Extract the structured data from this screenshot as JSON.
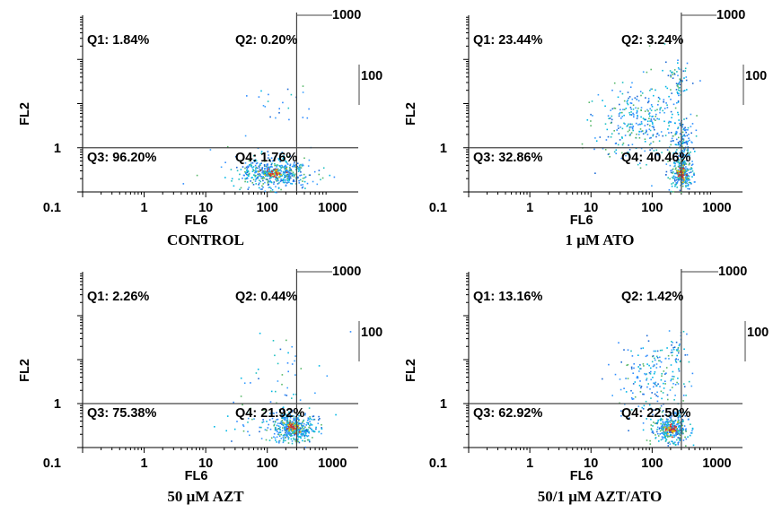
{
  "chart_data": [
    {
      "type": "scatter",
      "caption": "CONTROL",
      "xlabel": "FL6",
      "ylabel": "FL2",
      "xscale": "log",
      "yscale": "log",
      "xlim": [
        0.1,
        3000
      ],
      "ylim": [
        0.1,
        1000
      ],
      "x_ticks": [
        "1",
        "10",
        "100",
        "1000"
      ],
      "y_ticks": [
        "0.1",
        "1",
        "100",
        "1000"
      ],
      "gates": {
        "x": 300,
        "y": 1
      },
      "quadrants": [
        {
          "label": "Q1: 1.84%",
          "value": 1.84
        },
        {
          "label": "Q2: 0.20%",
          "value": 0.2
        },
        {
          "label": "Q3: 96.20%",
          "value": 96.2
        },
        {
          "label": "Q4: 1.76%",
          "value": 1.76
        }
      ],
      "populations": [
        {
          "center": [
            130,
            0.28
          ],
          "spread": [
            0.28,
            0.16
          ],
          "count": 480
        },
        {
          "center": [
            160,
            10
          ],
          "spread": [
            0.25,
            0.3
          ],
          "count": 22
        },
        {
          "center": [
            60,
            0.35
          ],
          "spread": [
            0.45,
            0.3
          ],
          "count": 40
        }
      ]
    },
    {
      "type": "scatter",
      "caption": "1 μM ATO",
      "xlabel": "FL6",
      "ylabel": "FL2",
      "xscale": "log",
      "yscale": "log",
      "xlim": [
        0.1,
        3000
      ],
      "ylim": [
        0.1,
        1000
      ],
      "x_ticks": [
        "1",
        "10",
        "100",
        "1000"
      ],
      "y_ticks": [
        "0.1",
        "1",
        "100",
        "1000"
      ],
      "gates": {
        "x": 300,
        "y": 1
      },
      "quadrants": [
        {
          "label": "Q1: 23.44%",
          "value": 23.44
        },
        {
          "label": "Q2: 3.24%",
          "value": 3.24
        },
        {
          "label": "Q3: 32.86%",
          "value": 32.86
        },
        {
          "label": "Q4: 40.46%",
          "value": 40.46
        }
      ],
      "populations": [
        {
          "center": [
            300,
            0.28
          ],
          "spread": [
            0.1,
            0.2
          ],
          "count": 260
        },
        {
          "center": [
            300,
            1.5
          ],
          "spread": [
            0.1,
            0.3
          ],
          "count": 120
        },
        {
          "center": [
            60,
            4
          ],
          "spread": [
            0.35,
            0.45
          ],
          "count": 320
        },
        {
          "center": [
            250,
            30
          ],
          "spread": [
            0.1,
            0.25
          ],
          "count": 60
        }
      ]
    },
    {
      "type": "scatter",
      "caption": "50 μM AZT",
      "xlabel": "FL6",
      "ylabel": "FL2",
      "xscale": "log",
      "yscale": "log",
      "xlim": [
        0.1,
        3000
      ],
      "ylim": [
        0.1,
        1000
      ],
      "x_ticks": [
        "1",
        "10",
        "100",
        "1000"
      ],
      "y_ticks": [
        "0.1",
        "1",
        "100",
        "1000"
      ],
      "gates": {
        "x": 300,
        "y": 1
      },
      "quadrants": [
        {
          "label": "Q1: 2.26%",
          "value": 2.26
        },
        {
          "label": "Q2: 0.44%",
          "value": 0.44
        },
        {
          "label": "Q3: 75.38%",
          "value": 75.38
        },
        {
          "label": "Q4: 21.92%",
          "value": 21.92
        }
      ],
      "populations": [
        {
          "center": [
            250,
            0.3
          ],
          "spread": [
            0.18,
            0.17
          ],
          "count": 440
        },
        {
          "center": [
            180,
            6
          ],
          "spread": [
            0.3,
            0.4
          ],
          "count": 35
        },
        {
          "center": [
            70,
            0.4
          ],
          "spread": [
            0.45,
            0.3
          ],
          "count": 50
        }
      ]
    },
    {
      "type": "scatter",
      "caption": "50/1 μM AZT/ATO",
      "xlabel": "FL6",
      "ylabel": "FL2",
      "xscale": "log",
      "yscale": "log",
      "xlim": [
        0.1,
        3000
      ],
      "ylim": [
        0.1,
        1000
      ],
      "x_ticks": [
        "1",
        "10",
        "100",
        "1000"
      ],
      "y_ticks": [
        "0.1",
        "1",
        "100",
        "1000"
      ],
      "gates": {
        "x": 300,
        "y": 1
      },
      "quadrants": [
        {
          "label": "Q1: 13.16%",
          "value": 13.16
        },
        {
          "label": "Q2: 1.42%",
          "value": 1.42
        },
        {
          "label": "Q3: 62.92%",
          "value": 62.92
        },
        {
          "label": "Q4: 22.50%",
          "value": 22.5
        }
      ],
      "populations": [
        {
          "center": [
            200,
            0.28
          ],
          "spread": [
            0.15,
            0.18
          ],
          "count": 360
        },
        {
          "center": [
            90,
            4
          ],
          "spread": [
            0.3,
            0.4
          ],
          "count": 180
        },
        {
          "center": [
            220,
            15
          ],
          "spread": [
            0.12,
            0.25
          ],
          "count": 40
        }
      ]
    }
  ]
}
